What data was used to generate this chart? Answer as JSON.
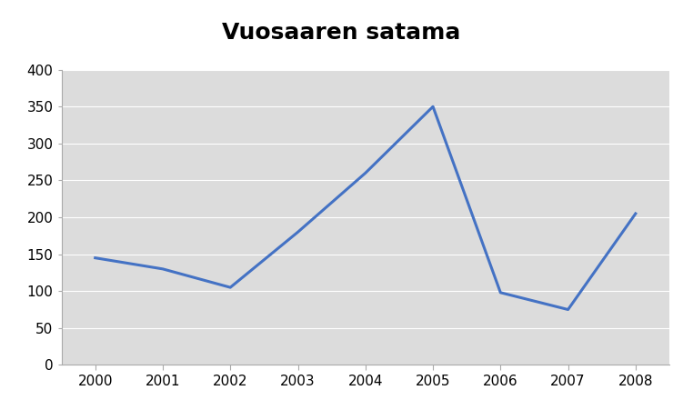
{
  "title": "Vuosaaren satama",
  "x_values": [
    2000,
    2001,
    2002,
    2003,
    2004,
    2005,
    2006,
    2007,
    2008
  ],
  "y_values": [
    145,
    130,
    105,
    180,
    260,
    350,
    98,
    75,
    205
  ],
  "xlim": [
    1999.5,
    2008.5
  ],
  "ylim": [
    0,
    400
  ],
  "yticks": [
    0,
    50,
    100,
    150,
    200,
    250,
    300,
    350,
    400
  ],
  "xticks": [
    2000,
    2001,
    2002,
    2003,
    2004,
    2005,
    2006,
    2007,
    2008
  ],
  "line_color": "#4472C4",
  "line_width": 2.2,
  "bg_color": "#DCDCDC",
  "title_fontsize": 18,
  "tick_fontsize": 11,
  "grid_color": "#FFFFFF",
  "outer_bg": "#FFFFFF"
}
